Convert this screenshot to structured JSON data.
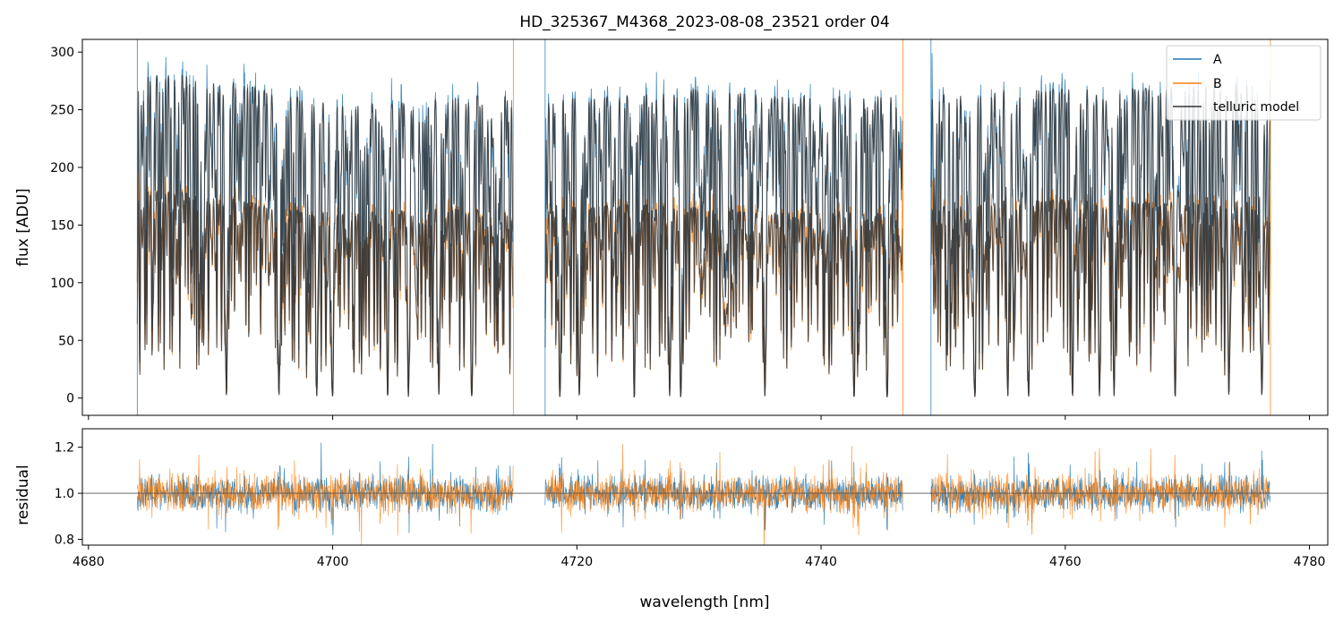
{
  "chart_data": {
    "type": "line",
    "title": "HD_325367_M4368_2023-08-08_23521  order 04",
    "xlabel": "wavelength [nm]",
    "xlim": [
      4679.5,
      4781.5
    ],
    "xticks": [
      4680,
      4700,
      4720,
      4740,
      4760,
      4780
    ],
    "panels": [
      {
        "ylabel": "flux [ADU]",
        "ylim": [
          -15,
          311
        ],
        "yticks": [
          0,
          50,
          100,
          150,
          200,
          250,
          300
        ],
        "legend": "top-right",
        "segments": [
          [
            4684.0,
            4714.8
          ],
          [
            4717.4,
            4746.7
          ],
          [
            4749.0,
            4776.8
          ]
        ],
        "series": [
          {
            "name": "A",
            "color": "#1f77b4",
            "continuum": [
              [
                4684.0,
                280
              ],
              [
                4690.0,
                280
              ],
              [
                4695.0,
                265
              ],
              [
                4700.0,
                255
              ],
              [
                4705.0,
                255
              ],
              [
                4710.0,
                262
              ],
              [
                4714.8,
                262
              ],
              [
                4717.4,
                260
              ],
              [
                4725.0,
                262
              ],
              [
                4730.0,
                268
              ],
              [
                4735.0,
                262
              ],
              [
                4740.0,
                262
              ],
              [
                4746.7,
                262
              ],
              [
                4749.0,
                262
              ],
              [
                4755.0,
                268
              ],
              [
                4760.0,
                268
              ],
              [
                4765.0,
                268
              ],
              [
                4770.0,
                270
              ],
              [
                4774.0,
                280
              ],
              [
                4776.8,
                260
              ]
            ]
          },
          {
            "name": "B",
            "color": "#ff7f0e",
            "continuum": [
              [
                4684.0,
                180
              ],
              [
                4690.0,
                178
              ],
              [
                4695.0,
                165
              ],
              [
                4700.0,
                160
              ],
              [
                4705.0,
                162
              ],
              [
                4710.0,
                165
              ],
              [
                4714.8,
                160
              ],
              [
                4717.4,
                165
              ],
              [
                4725.0,
                168
              ],
              [
                4730.0,
                165
              ],
              [
                4735.0,
                160
              ],
              [
                4740.0,
                162
              ],
              [
                4746.7,
                160
              ],
              [
                4749.0,
                165
              ],
              [
                4755.0,
                172
              ],
              [
                4760.0,
                172
              ],
              [
                4765.0,
                170
              ],
              [
                4770.0,
                170
              ],
              [
                4774.0,
                175
              ],
              [
                4776.8,
                165
              ]
            ]
          },
          {
            "name": "telluric model",
            "color": "#333333"
          }
        ],
        "deep_lines": [
          4691.3,
          4695.6,
          4698.7,
          4700.0,
          4704.5,
          4706.2,
          4708.7,
          4711.4,
          4718.6,
          4720.2,
          4724.7,
          4727.6,
          4728.5,
          4735.4,
          4742.7,
          4745.4,
          4752.6,
          4755.3,
          4757.0,
          4760.6,
          4762.8,
          4764.0,
          4769.0,
          4773.4,
          4776.1
        ]
      },
      {
        "ylabel": "residual",
        "ylim": [
          0.775,
          1.28
        ],
        "yticks": [
          0.8,
          1.0,
          1.2
        ],
        "reference_line": 1.0,
        "series": [
          {
            "name": "A",
            "color": "#1f77b4"
          },
          {
            "name": "B",
            "color": "#ff7f0e"
          }
        ]
      }
    ]
  }
}
